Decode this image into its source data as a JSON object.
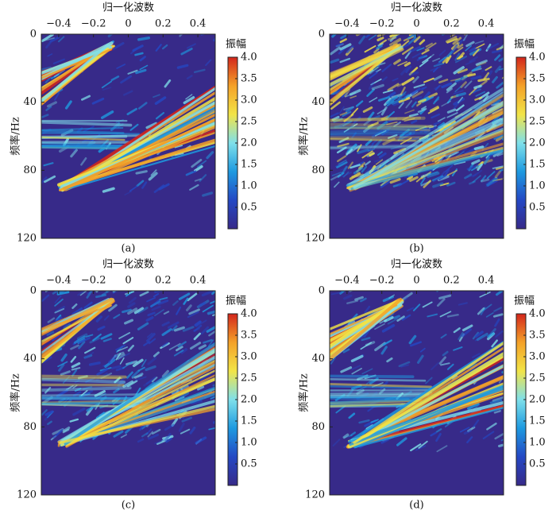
{
  "chart_data": [
    {
      "type": "heatmap",
      "caption": "(a)",
      "x_label": "归一化波数",
      "y_label": "频率/Hz",
      "xlim": [
        -0.5,
        0.5
      ],
      "xticks": [
        {
          "value": -0.4,
          "label": "−0.4"
        },
        {
          "value": -0.2,
          "label": "−0.2"
        },
        0,
        0.2,
        0.4
      ],
      "ylim": [
        0,
        120
      ],
      "yticks": [
        0,
        40,
        80,
        120
      ],
      "colorbar": {
        "title": "振幅",
        "lim": [
          0,
          4
        ],
        "ticks": [
          {
            "value": 0.5,
            "label": "0.5"
          },
          {
            "value": 1,
            "label": "1.0"
          },
          1.5,
          {
            "value": 2,
            "label": "2.0"
          },
          2.5,
          {
            "value": 3,
            "label": "3.0"
          },
          3.5,
          {
            "value": 4,
            "label": "4.0"
          }
        ]
      },
      "colormap": [
        "#372a89",
        "#2448c4",
        "#1e9ae0",
        "#7fe0ea",
        "#f2e447",
        "#f4a128",
        "#d3261c"
      ]
    },
    {
      "type": "heatmap",
      "caption": "(b)",
      "x_label": "归一化波数",
      "y_label": "频率/Hz",
      "xlim": [
        -0.5,
        0.5
      ],
      "xticks": [
        {
          "value": -0.4,
          "label": "−0.4"
        },
        {
          "value": -0.2,
          "label": "−0.2"
        },
        0,
        0.2,
        0.4
      ],
      "ylim": [
        0,
        120
      ],
      "yticks": [
        0,
        40,
        80,
        120
      ],
      "colorbar": {
        "title": "振幅",
        "lim": [
          0,
          4
        ],
        "ticks": [
          {
            "value": 0.5,
            "label": "0.5"
          },
          {
            "value": 1,
            "label": "1.0"
          },
          1.5,
          {
            "value": 2,
            "label": "2.0"
          },
          2.5,
          {
            "value": 3,
            "label": "3.0"
          },
          3.5,
          {
            "value": 4,
            "label": "4.0"
          }
        ]
      },
      "colormap": [
        "#372a89",
        "#2448c4",
        "#1e9ae0",
        "#7fe0ea",
        "#f2e447",
        "#f4a128",
        "#d3261c"
      ]
    },
    {
      "type": "heatmap",
      "caption": "(c)",
      "x_label": "归一化波数",
      "y_label": "频率/Hz",
      "xlim": [
        -0.5,
        0.5
      ],
      "xticks": [
        {
          "value": -0.4,
          "label": "−0.4"
        },
        {
          "value": -0.2,
          "label": "−0.2"
        },
        0,
        0.2,
        0.4
      ],
      "ylim": [
        0,
        120
      ],
      "yticks": [
        0,
        40,
        80,
        120
      ],
      "colorbar": {
        "title": "振幅",
        "lim": [
          0,
          4
        ],
        "ticks": [
          {
            "value": 0.5,
            "label": "0.5"
          },
          {
            "value": 1,
            "label": "1.0"
          },
          1.5,
          {
            "value": 2,
            "label": "2.0"
          },
          2.5,
          {
            "value": 3,
            "label": "3.0"
          },
          3.5,
          {
            "value": 4,
            "label": "4.0"
          }
        ]
      },
      "colormap": [
        "#372a89",
        "#2448c4",
        "#1e9ae0",
        "#7fe0ea",
        "#f2e447",
        "#f4a128",
        "#d3261c"
      ]
    },
    {
      "type": "heatmap",
      "caption": "(d)",
      "x_label": "归一化波数",
      "y_label": "频率/Hz",
      "xlim": [
        -0.5,
        0.5
      ],
      "xticks": [
        {
          "value": -0.4,
          "label": "−0.4"
        },
        {
          "value": -0.2,
          "label": "−0.2"
        },
        0,
        0.2,
        0.4
      ],
      "ylim": [
        0,
        120
      ],
      "yticks": [
        0,
        40,
        80,
        120
      ],
      "colorbar": {
        "title": "振幅",
        "lim": [
          0,
          4
        ],
        "ticks": [
          {
            "value": 0.5,
            "label": "0.5"
          },
          {
            "value": 1,
            "label": "1.0"
          },
          1.5,
          {
            "value": 2,
            "label": "2.0"
          },
          2.5,
          {
            "value": 3,
            "label": "3.0"
          },
          3.5,
          {
            "value": 4,
            "label": "4.0"
          }
        ]
      },
      "colormap": [
        "#372a89",
        "#2448c4",
        "#1e9ae0",
        "#7fe0ea",
        "#f2e447",
        "#f4a128",
        "#d3261c"
      ]
    }
  ]
}
